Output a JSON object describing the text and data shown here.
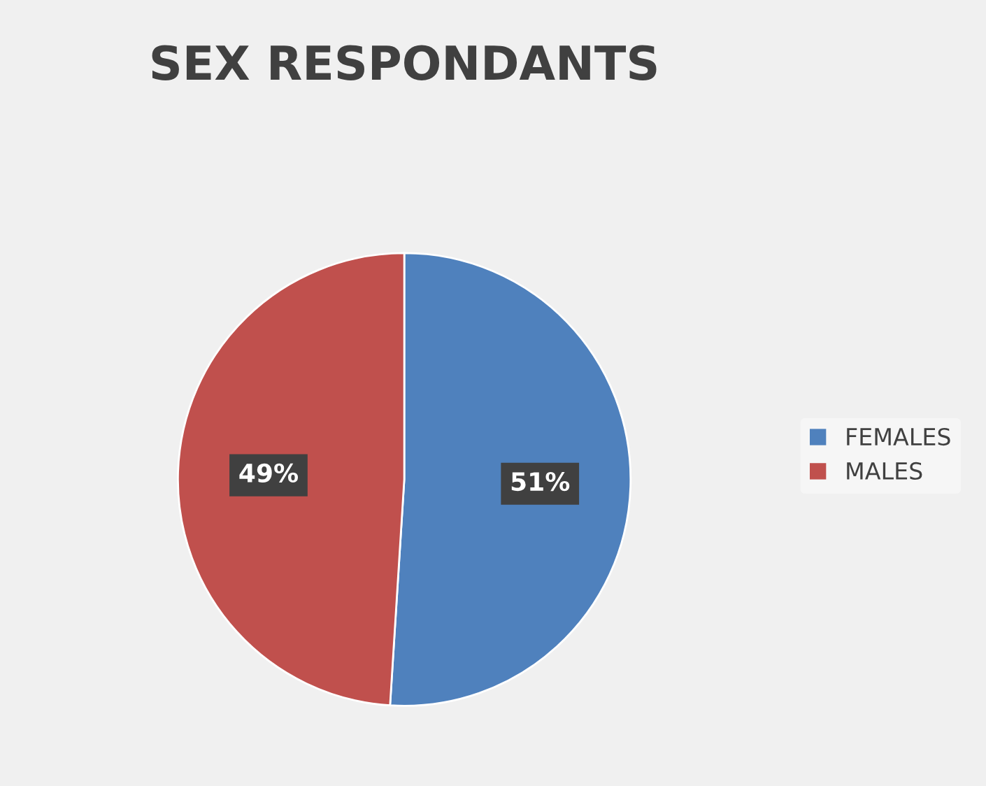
{
  "chart_data": {
    "type": "pie",
    "title": "SEX RESPONDANTS",
    "categories": [
      "FEMALES",
      "MALES"
    ],
    "values": [
      51,
      49
    ],
    "colors": [
      "#4f81bd",
      "#c0504d"
    ],
    "value_labels": [
      "51%",
      "49%"
    ],
    "legend": "right"
  }
}
